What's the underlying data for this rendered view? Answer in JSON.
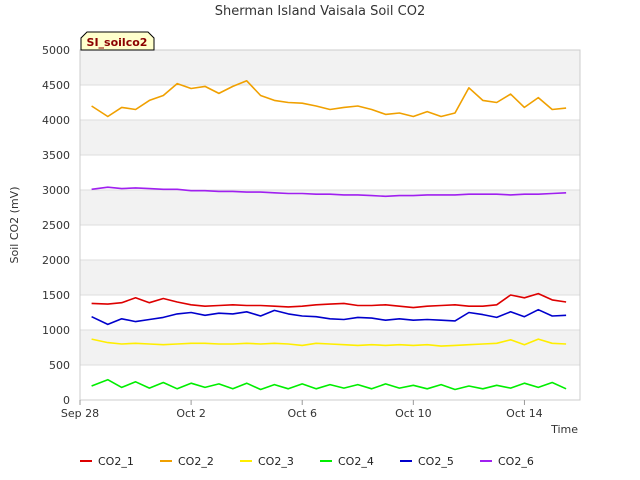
{
  "chart_data": {
    "type": "line",
    "title": "Sherman Island Vaisala Soil CO2",
    "tag": "SI_soilco2",
    "xlabel": "Time",
    "ylabel": "Soil CO2 (mV)",
    "ylim": [
      0,
      5000
    ],
    "yticks": [
      0,
      500,
      1000,
      1500,
      2000,
      2500,
      3000,
      3500,
      4000,
      4500,
      5000
    ],
    "xlim": [
      "2014-09-28",
      "2014-10-16"
    ],
    "xticks": [
      {
        "label": "Sep 28",
        "x": "2014-09-28"
      },
      {
        "label": "Oct 2",
        "x": "2014-10-02"
      },
      {
        "label": "Oct 6",
        "x": "2014-10-06"
      },
      {
        "label": "Oct 10",
        "x": "2014-10-10"
      },
      {
        "label": "Oct 14",
        "x": "2014-10-14"
      }
    ],
    "grid": true,
    "legend": "bottom",
    "x": [
      "2014-09-28T10:00",
      "2014-09-29T00:00",
      "2014-09-29T12:00",
      "2014-09-30T00:00",
      "2014-09-30T12:00",
      "2014-10-01T00:00",
      "2014-10-01T12:00",
      "2014-10-02T00:00",
      "2014-10-02T12:00",
      "2014-10-03T00:00",
      "2014-10-03T12:00",
      "2014-10-04T00:00",
      "2014-10-04T12:00",
      "2014-10-05T00:00",
      "2014-10-05T12:00",
      "2014-10-06T00:00",
      "2014-10-06T12:00",
      "2014-10-07T00:00",
      "2014-10-07T12:00",
      "2014-10-08T00:00",
      "2014-10-08T12:00",
      "2014-10-09T00:00",
      "2014-10-09T12:00",
      "2014-10-10T00:00",
      "2014-10-10T12:00",
      "2014-10-11T00:00",
      "2014-10-11T12:00",
      "2014-10-12T00:00",
      "2014-10-12T12:00",
      "2014-10-13T00:00",
      "2014-10-13T12:00",
      "2014-10-14T00:00",
      "2014-10-14T12:00",
      "2014-10-15T00:00",
      "2014-10-15T12:00"
    ],
    "series": [
      {
        "name": "CO2_1",
        "color": "#dd0000",
        "values": [
          1380,
          1370,
          1390,
          1460,
          1390,
          1450,
          1400,
          1360,
          1340,
          1350,
          1360,
          1350,
          1350,
          1340,
          1330,
          1340,
          1360,
          1370,
          1380,
          1350,
          1350,
          1360,
          1340,
          1320,
          1340,
          1350,
          1360,
          1340,
          1340,
          1360,
          1500,
          1460,
          1520,
          1430,
          1400
        ]
      },
      {
        "name": "CO2_2",
        "color": "#f0a000",
        "values": [
          4200,
          4050,
          4180,
          4150,
          4280,
          4350,
          4520,
          4450,
          4480,
          4380,
          4480,
          4560,
          4350,
          4280,
          4250,
          4240,
          4200,
          4150,
          4180,
          4200,
          4150,
          4080,
          4100,
          4050,
          4120,
          4050,
          4100,
          4460,
          4280,
          4250,
          4370,
          4180,
          4320,
          4150,
          4170
        ]
      },
      {
        "name": "CO2_3",
        "color": "#ffee00",
        "values": [
          870,
          820,
          800,
          810,
          800,
          790,
          800,
          810,
          810,
          800,
          800,
          810,
          800,
          810,
          800,
          780,
          810,
          800,
          790,
          780,
          790,
          780,
          790,
          780,
          790,
          770,
          780,
          790,
          800,
          810,
          860,
          790,
          870,
          810,
          800
        ]
      },
      {
        "name": "CO2_4",
        "color": "#00ee00",
        "values": [
          200,
          290,
          180,
          260,
          170,
          250,
          160,
          240,
          180,
          230,
          160,
          240,
          150,
          220,
          160,
          230,
          160,
          220,
          170,
          220,
          160,
          230,
          170,
          210,
          160,
          220,
          150,
          200,
          160,
          210,
          170,
          240,
          180,
          250,
          160
        ]
      },
      {
        "name": "CO2_5",
        "color": "#0000cc",
        "values": [
          1190,
          1080,
          1160,
          1120,
          1150,
          1180,
          1230,
          1250,
          1210,
          1240,
          1230,
          1260,
          1200,
          1280,
          1230,
          1200,
          1190,
          1160,
          1150,
          1180,
          1170,
          1140,
          1160,
          1140,
          1150,
          1140,
          1130,
          1250,
          1220,
          1180,
          1260,
          1190,
          1290,
          1200,
          1210
        ]
      },
      {
        "name": "CO2_6",
        "color": "#a020f0",
        "values": [
          3010,
          3040,
          3020,
          3030,
          3020,
          3010,
          3010,
          2990,
          2990,
          2980,
          2980,
          2970,
          2970,
          2960,
          2950,
          2950,
          2940,
          2940,
          2930,
          2930,
          2920,
          2910,
          2920,
          2920,
          2930,
          2930,
          2930,
          2940,
          2940,
          2940,
          2930,
          2940,
          2940,
          2950,
          2960
        ]
      }
    ]
  }
}
